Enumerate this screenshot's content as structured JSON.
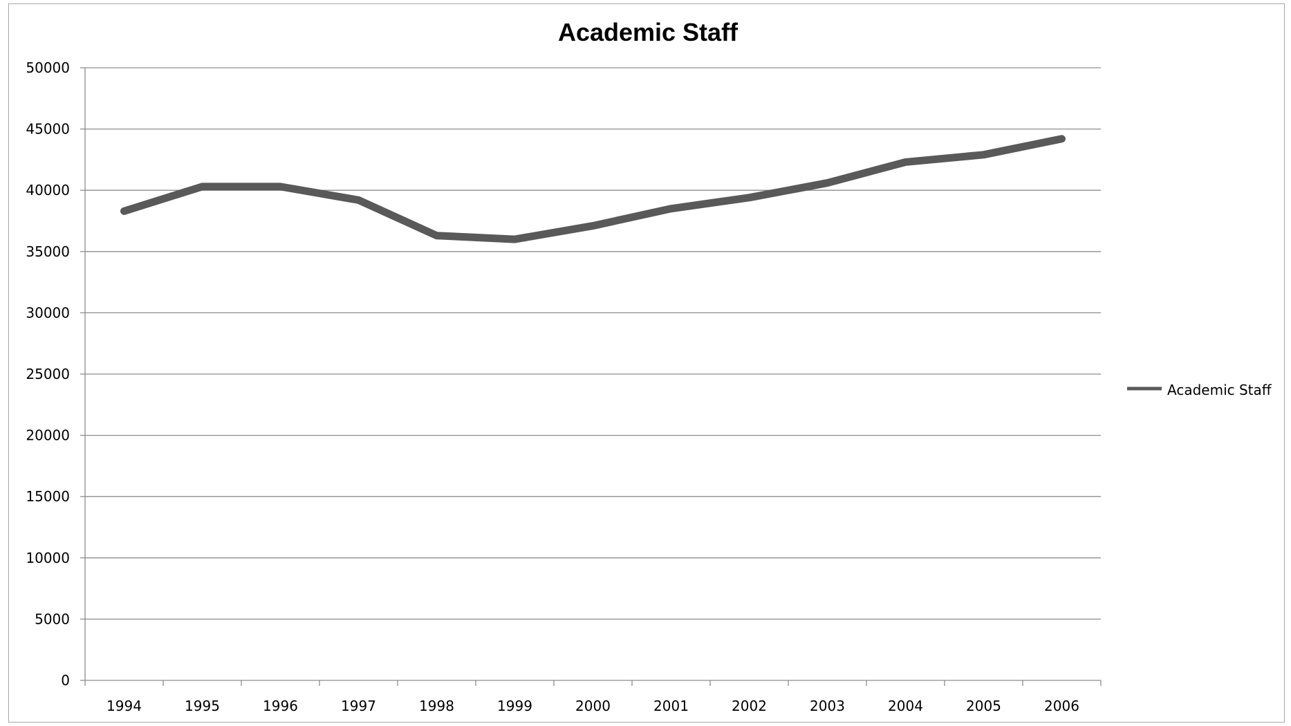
{
  "chart_data": {
    "type": "line",
    "title": "Academic Staff",
    "xlabel": "",
    "ylabel": "",
    "categories": [
      "1994",
      "1995",
      "1996",
      "1997",
      "1998",
      "1999",
      "2000",
      "2001",
      "2002",
      "2003",
      "2004",
      "2005",
      "2006"
    ],
    "series": [
      {
        "name": "Academic Staff",
        "values": [
          38300,
          40300,
          40300,
          39200,
          36300,
          36000,
          37100,
          38500,
          39400,
          40600,
          42300,
          42900,
          44200
        ],
        "color": "#595959"
      }
    ],
    "ylim": [
      0,
      50000
    ],
    "yticks": [
      0,
      5000,
      10000,
      15000,
      20000,
      25000,
      30000,
      35000,
      40000,
      45000,
      50000
    ],
    "grid": true,
    "legend_position": "right"
  }
}
